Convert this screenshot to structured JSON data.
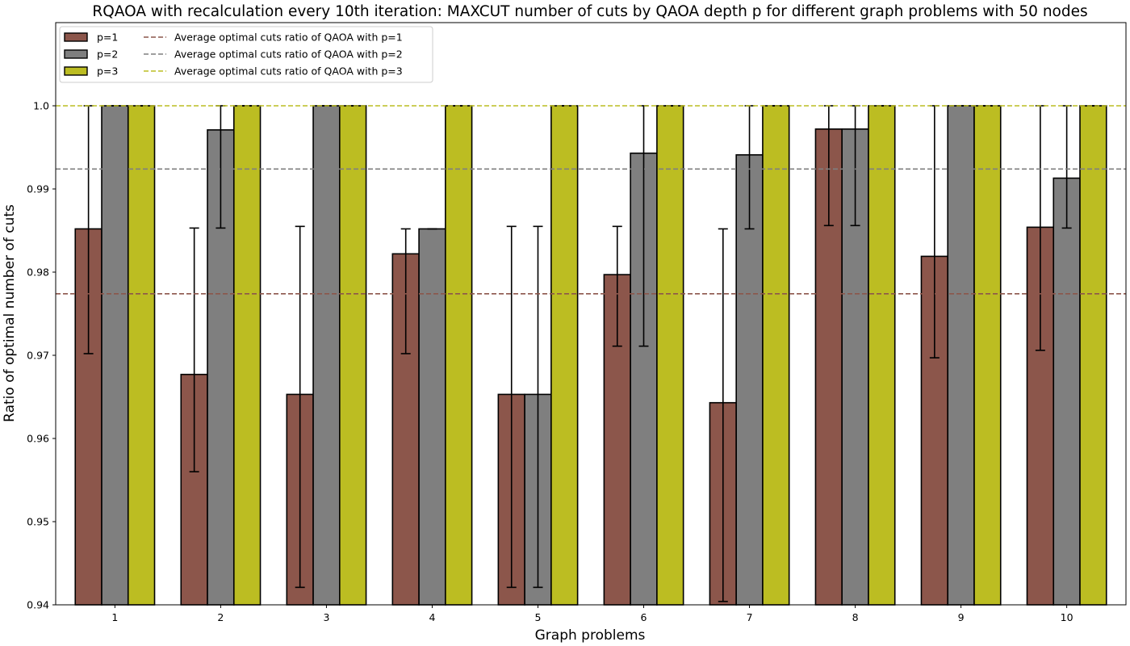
{
  "chart_data": {
    "type": "bar",
    "title": "RQAOA with recalculation every 10th iteration: MAXCUT number of cuts by QAOA depth p for different graph problems with 50 nodes",
    "xlabel": "Graph problems",
    "ylabel": "Ratio of optimal number of cuts",
    "categories": [
      "1",
      "2",
      "3",
      "4",
      "5",
      "6",
      "7",
      "8",
      "9",
      "10"
    ],
    "ylim": [
      0.94,
      1.01
    ],
    "yticks": [
      "0.94",
      "0.95",
      "0.96",
      "0.97",
      "0.98",
      "0.99",
      "1.0"
    ],
    "grid": false,
    "legend_position": "top-left",
    "series": [
      {
        "name": "p=1",
        "color": "#8c564b",
        "values": [
          0.9852,
          0.9677,
          0.9653,
          0.9822,
          0.9653,
          0.9797,
          0.9643,
          0.9972,
          0.9819,
          0.9854
        ],
        "err_low": [
          0.9702,
          0.956,
          0.9421,
          0.9702,
          0.9421,
          0.9711,
          0.9404,
          0.9856,
          0.9697,
          0.9706
        ],
        "err_high": [
          1.0,
          0.9853,
          0.9855,
          0.9852,
          0.9855,
          0.9855,
          0.9852,
          1.0,
          1.0,
          1.0
        ]
      },
      {
        "name": "p=2",
        "color": "#7f7f7f",
        "values": [
          1.0,
          0.9971,
          1.0,
          0.9852,
          0.9653,
          0.9943,
          0.9941,
          0.9972,
          1.0,
          0.9913
        ],
        "err_low": [
          1.0,
          0.9853,
          1.0,
          0.9852,
          0.9421,
          0.9711,
          0.9852,
          0.9856,
          1.0,
          0.9853
        ],
        "err_high": [
          1.0,
          1.0,
          1.0,
          0.9852,
          0.9855,
          1.0,
          1.0,
          1.0,
          1.0,
          1.0
        ]
      },
      {
        "name": "p=3",
        "color": "#bcbd22",
        "values": [
          1.0,
          1.0,
          1.0,
          1.0,
          1.0,
          1.0,
          1.0,
          1.0,
          1.0,
          1.0
        ],
        "err_low": [
          1.0,
          1.0,
          1.0,
          1.0,
          1.0,
          1.0,
          1.0,
          1.0,
          1.0,
          1.0
        ],
        "err_high": [
          1.0,
          1.0,
          1.0,
          1.0,
          1.0,
          1.0,
          1.0,
          1.0,
          1.0,
          1.0
        ]
      }
    ],
    "reference_lines": [
      {
        "name": "Average optimal cuts ratio of QAOA with p=1",
        "value": 0.9774,
        "color": "#8c564b",
        "style": "dashed"
      },
      {
        "name": "Average optimal cuts ratio of QAOA with p=2",
        "value": 0.9924,
        "color": "#7f7f7f",
        "style": "dashed"
      },
      {
        "name": "Average optimal cuts ratio of QAOA with p=3",
        "value": 1.0,
        "color": "#bcbd22",
        "style": "dashed"
      }
    ]
  }
}
